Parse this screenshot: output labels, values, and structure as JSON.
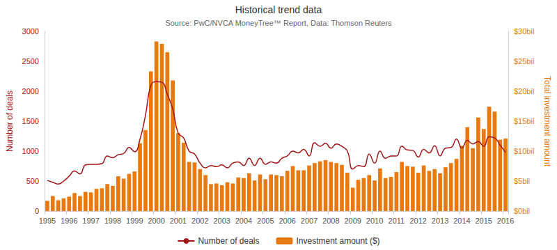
{
  "chart_data": {
    "type": "bar",
    "title": "Historical trend data",
    "subtitle": "Source: PwC/NVCA MoneyTree™ Report, Data: Thomson Reuters",
    "y_label": "Number of deals",
    "y2_label": "Total investment amount",
    "categories": [
      "1995",
      null,
      null,
      null,
      "1996",
      null,
      null,
      null,
      "1997",
      null,
      null,
      null,
      "1998",
      null,
      null,
      null,
      "1999",
      null,
      null,
      null,
      "2000",
      null,
      null,
      null,
      "2001",
      null,
      null,
      null,
      "2002",
      null,
      null,
      null,
      "2003",
      null,
      null,
      null,
      "2004",
      null,
      null,
      null,
      "2005",
      null,
      null,
      null,
      "2006",
      null,
      null,
      null,
      "2007",
      null,
      null,
      null,
      "2008",
      null,
      null,
      null,
      "2009",
      null,
      null,
      null,
      "2010",
      null,
      null,
      null,
      "2011",
      null,
      null,
      null,
      "2012",
      null,
      null,
      null,
      "2013",
      null,
      null,
      null,
      "2014",
      null,
      null,
      null,
      "2015",
      null,
      null,
      null,
      "2016"
    ],
    "series": [
      {
        "name": "Number of deals",
        "type": "line",
        "color": "#a31515",
        "axis": "y",
        "values": [
          510,
          480,
          450,
          500,
          580,
          670,
          620,
          770,
          780,
          780,
          790,
          920,
          890,
          940,
          960,
          1060,
          990,
          1200,
          1600,
          2100,
          2160,
          2150,
          1950,
          1700,
          1300,
          1220,
          1000,
          950,
          800,
          720,
          760,
          740,
          770,
          720,
          800,
          820,
          760,
          880,
          760,
          880,
          780,
          820,
          800,
          880,
          920,
          1000,
          970,
          1030,
          920,
          1140,
          1080,
          1130,
          1050,
          1120,
          1080,
          1000,
          700,
          760,
          740,
          950,
          800,
          1000,
          880,
          920,
          920,
          1080,
          1020,
          1010,
          900,
          1030,
          970,
          1090,
          920,
          1050,
          1060,
          1200,
          1050,
          1180,
          1120,
          1160,
          1080,
          1240,
          1220,
          1100,
          980
        ]
      },
      {
        "name": "Investment amount ($)",
        "type": "bar",
        "color": "#e8790f",
        "axis": "y2",
        "values": [
          1.7,
          2.5,
          1.8,
          2.1,
          2.4,
          3.0,
          2.5,
          3.2,
          3.1,
          3.7,
          3.8,
          4.5,
          4.2,
          5.8,
          5.4,
          6.2,
          6.6,
          11.3,
          13.5,
          23.3,
          28.3,
          27.9,
          26.5,
          21.8,
          13.0,
          11.4,
          8.2,
          8.1,
          7.0,
          6.0,
          4.5,
          4.6,
          4.3,
          4.8,
          4.6,
          5.6,
          5.5,
          6.3,
          5.1,
          6.1,
          5.3,
          6.1,
          6.0,
          5.8,
          6.7,
          7.5,
          6.8,
          6.8,
          7.6,
          8.0,
          8.3,
          8.5,
          8.2,
          8.0,
          7.7,
          6.4,
          3.9,
          5.2,
          5.5,
          6.0,
          5.1,
          7.1,
          5.5,
          5.7,
          6.5,
          8.2,
          7.5,
          7.4,
          6.4,
          7.6,
          6.7,
          7.0,
          6.3,
          7.3,
          8.0,
          8.7,
          10.9,
          14.0,
          10.5,
          15.6,
          13.7,
          17.4,
          16.6,
          11.9,
          12.1
        ]
      }
    ],
    "ylim": [
      0,
      3000
    ],
    "yticks": [
      0,
      500,
      1000,
      1500,
      2000,
      2500,
      3000
    ],
    "y2lim": [
      0,
      30
    ],
    "y2ticks": [
      {
        "value": 0,
        "label": "$0bil"
      },
      {
        "value": 5,
        "label": "$5bil"
      },
      {
        "value": 10,
        "label": "$10bil"
      },
      {
        "value": 15,
        "label": "$15bil"
      },
      {
        "value": 20,
        "label": "$20bil"
      },
      {
        "value": 25,
        "label": "$25bil"
      },
      {
        "value": 30,
        "label": "$30bil"
      }
    ],
    "grid": false,
    "legend": "bottom"
  }
}
